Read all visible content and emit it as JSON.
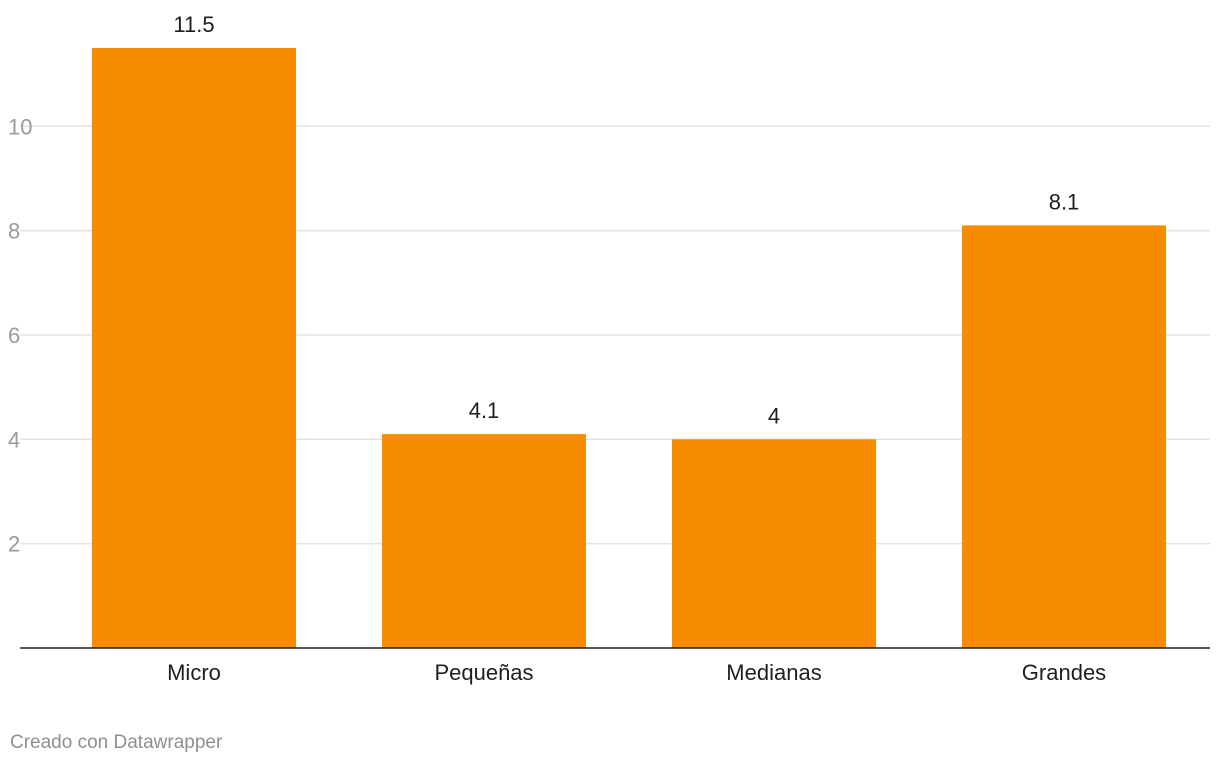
{
  "chart_data": {
    "type": "bar",
    "categories": [
      "Micro",
      "Pequeñas",
      "Medianas",
      "Grandes"
    ],
    "values": [
      11.5,
      4.1,
      4,
      8.1
    ],
    "value_labels": [
      "11.5",
      "4.1",
      "4",
      "8.1"
    ],
    "title": "",
    "xlabel": "",
    "ylabel": "",
    "ylim": [
      0,
      11.5
    ],
    "yticks": [
      2,
      4,
      6,
      8,
      10
    ],
    "grid": true,
    "bar_color": "#f78c00"
  },
  "footer": {
    "credit": "Creado con Datawrapper"
  }
}
